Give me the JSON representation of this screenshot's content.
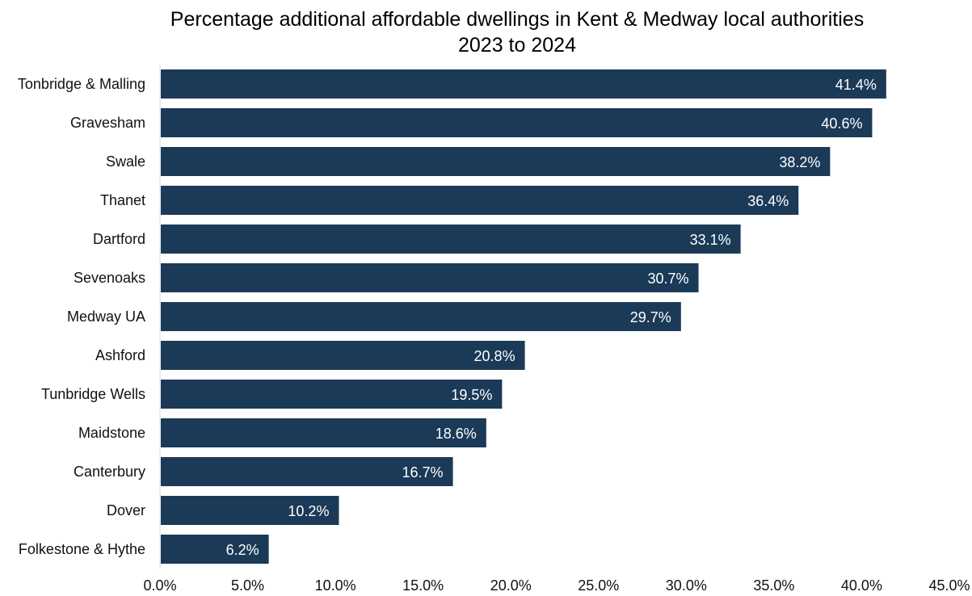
{
  "chart_data": {
    "type": "bar",
    "orientation": "horizontal",
    "title": "Percentage additional affordable dwellings in Kent & Medway local authorities",
    "subtitle": "2023 to 2024",
    "categories": [
      "Tonbridge & Malling",
      "Gravesham",
      "Swale",
      "Thanet",
      "Dartford",
      "Sevenoaks",
      "Medway UA",
      "Ashford",
      "Tunbridge Wells",
      "Maidstone",
      "Canterbury",
      "Dover",
      "Folkestone & Hythe"
    ],
    "values": [
      41.4,
      40.6,
      38.2,
      36.4,
      33.1,
      30.7,
      29.7,
      20.8,
      19.5,
      18.6,
      16.7,
      10.2,
      6.2
    ],
    "value_labels": [
      "41.4%",
      "40.6%",
      "38.2%",
      "36.4%",
      "33.1%",
      "30.7%",
      "29.7%",
      "20.8%",
      "19.5%",
      "18.6%",
      "16.7%",
      "10.2%",
      "6.2%"
    ],
    "xlim": [
      0,
      45
    ],
    "x_ticks": [
      0,
      5,
      10,
      15,
      20,
      25,
      30,
      35,
      40,
      45
    ],
    "x_tick_labels": [
      "0.0%",
      "5.0%",
      "10.0%",
      "15.0%",
      "20.0%",
      "25.0%",
      "30.0%",
      "35.0%",
      "40.0%",
      "45.0%"
    ],
    "xlabel": "",
    "ylabel": "",
    "grid": false,
    "legend": "none",
    "bar_color": "#1b3a57",
    "label_color": "#ffffff"
  }
}
